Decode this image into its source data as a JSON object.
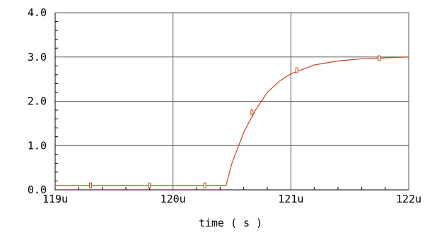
{
  "chart_data": {
    "type": "line",
    "title": "",
    "xlabel": "time ( s )",
    "ylabel": "",
    "x_tick_labels": [
      "119u",
      "120u",
      "121u",
      "122u"
    ],
    "y_tick_labels": [
      "0.0",
      "1.0",
      "2.0",
      "3.0",
      "4.0"
    ],
    "xlim": [
      0.000119,
      0.000122
    ],
    "ylim": [
      0,
      4
    ],
    "grid": true,
    "legend": "none",
    "series": [
      {
        "x": [
          0.000119,
          0.0001195,
          0.00012,
          0.00012045,
          0.0001205,
          0.0001206,
          0.0001207,
          0.0001208,
          0.0001209,
          0.000121,
          0.0001212,
          0.0001214,
          0.0001216,
          0.0001218,
          0.000122
        ],
        "y": [
          0.1,
          0.1,
          0.1,
          0.1,
          0.6,
          1.3,
          1.8,
          2.2,
          2.45,
          2.62,
          2.82,
          2.91,
          2.96,
          2.98,
          3.0
        ],
        "markers_x": [
          0.0001193,
          0.0001198,
          0.00012027,
          0.00012067,
          0.00012105,
          0.00012175
        ],
        "markers_y": [
          0.1,
          0.1,
          0.1,
          1.75,
          2.7,
          2.97
        ]
      }
    ],
    "colors": {
      "trace": "#cc4418",
      "axis": "#000000",
      "grid": "#555555",
      "minor_tick": "#000000",
      "background": "#ffffff"
    }
  }
}
